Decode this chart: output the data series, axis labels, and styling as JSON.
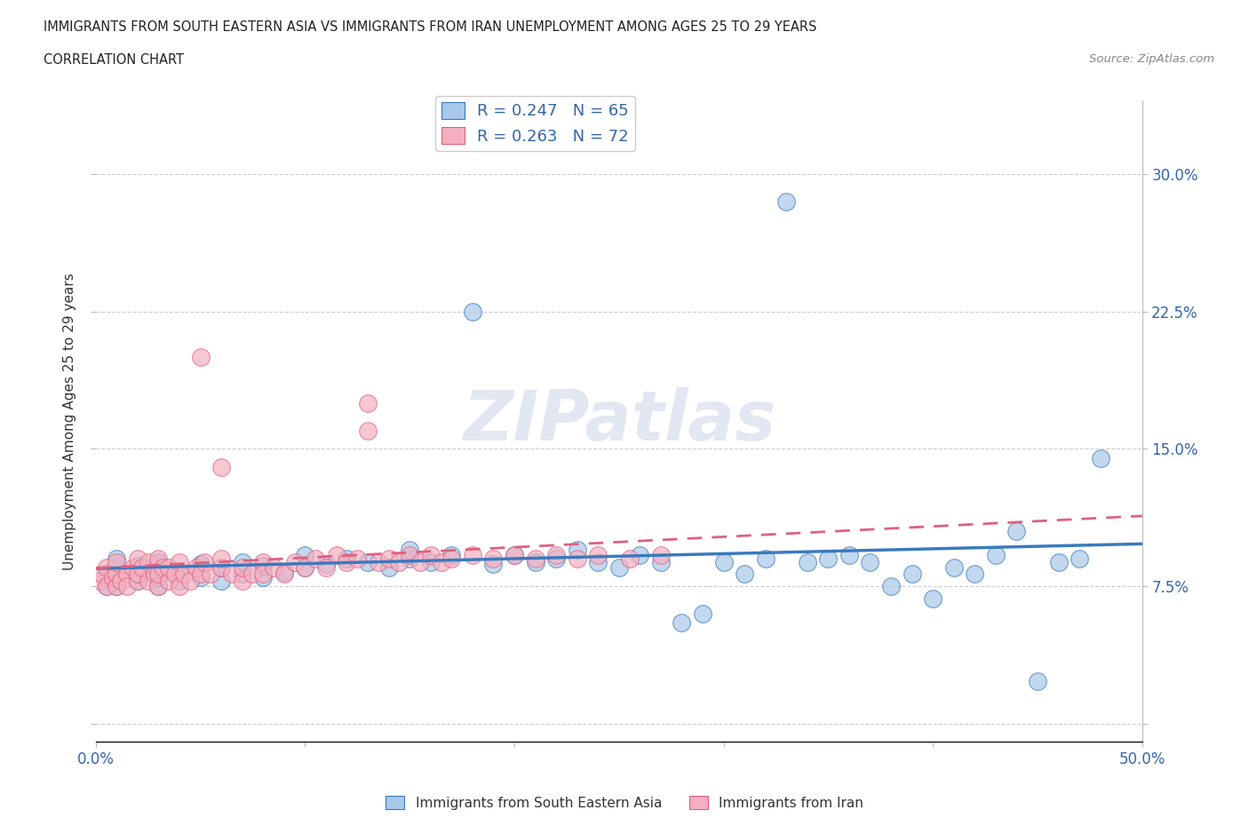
{
  "title_line1": "IMMIGRANTS FROM SOUTH EASTERN ASIA VS IMMIGRANTS FROM IRAN UNEMPLOYMENT AMONG AGES 25 TO 29 YEARS",
  "title_line2": "CORRELATION CHART",
  "source_text": "Source: ZipAtlas.com",
  "ylabel": "Unemployment Among Ages 25 to 29 years",
  "xlim": [
    0.0,
    0.5
  ],
  "ylim": [
    -0.01,
    0.34
  ],
  "color_blue": "#a8c8e8",
  "color_pink": "#f4b0c0",
  "line_blue": "#3a7abf",
  "line_pink": "#e06080",
  "R_blue": 0.247,
  "N_blue": 65,
  "R_pink": 0.263,
  "N_pink": 72,
  "legend_label_blue": "Immigrants from South Eastern Asia",
  "legend_label_pink": "Immigrants from Iran",
  "watermark": "ZIPatlas",
  "background_color": "#ffffff",
  "grid_color": "#cccccc",
  "blue_x": [
    0.005,
    0.005,
    0.008,
    0.01,
    0.01,
    0.01,
    0.01,
    0.02,
    0.02,
    0.02,
    0.03,
    0.03,
    0.03,
    0.04,
    0.04,
    0.05,
    0.05,
    0.06,
    0.06,
    0.07,
    0.07,
    0.08,
    0.08,
    0.09,
    0.1,
    0.1,
    0.11,
    0.12,
    0.13,
    0.14,
    0.15,
    0.15,
    0.16,
    0.17,
    0.18,
    0.19,
    0.2,
    0.21,
    0.22,
    0.23,
    0.24,
    0.25,
    0.26,
    0.27,
    0.28,
    0.29,
    0.3,
    0.31,
    0.32,
    0.33,
    0.34,
    0.35,
    0.36,
    0.37,
    0.38,
    0.39,
    0.4,
    0.41,
    0.42,
    0.43,
    0.44,
    0.45,
    0.46,
    0.47,
    0.48
  ],
  "blue_y": [
    0.075,
    0.082,
    0.078,
    0.075,
    0.08,
    0.085,
    0.09,
    0.078,
    0.082,
    0.086,
    0.075,
    0.08,
    0.088,
    0.078,
    0.083,
    0.08,
    0.087,
    0.078,
    0.085,
    0.082,
    0.088,
    0.08,
    0.086,
    0.083,
    0.085,
    0.092,
    0.087,
    0.09,
    0.088,
    0.085,
    0.09,
    0.095,
    0.088,
    0.092,
    0.225,
    0.087,
    0.092,
    0.088,
    0.09,
    0.095,
    0.088,
    0.085,
    0.092,
    0.088,
    0.055,
    0.06,
    0.088,
    0.082,
    0.09,
    0.285,
    0.088,
    0.09,
    0.092,
    0.088,
    0.075,
    0.082,
    0.068,
    0.085,
    0.082,
    0.092,
    0.105,
    0.023,
    0.088,
    0.09,
    0.145
  ],
  "pink_x": [
    0.002,
    0.003,
    0.005,
    0.005,
    0.008,
    0.01,
    0.01,
    0.01,
    0.012,
    0.015,
    0.015,
    0.018,
    0.02,
    0.02,
    0.02,
    0.022,
    0.025,
    0.025,
    0.028,
    0.03,
    0.03,
    0.03,
    0.032,
    0.035,
    0.035,
    0.038,
    0.04,
    0.04,
    0.042,
    0.045,
    0.048,
    0.05,
    0.05,
    0.052,
    0.055,
    0.06,
    0.06,
    0.065,
    0.07,
    0.07,
    0.075,
    0.08,
    0.08,
    0.085,
    0.09,
    0.095,
    0.1,
    0.105,
    0.11,
    0.115,
    0.12,
    0.125,
    0.13,
    0.135,
    0.14,
    0.145,
    0.15,
    0.155,
    0.16,
    0.165,
    0.17,
    0.18,
    0.19,
    0.2,
    0.21,
    0.22,
    0.23,
    0.24,
    0.255,
    0.27,
    0.06,
    0.13
  ],
  "pink_y": [
    0.078,
    0.082,
    0.075,
    0.085,
    0.08,
    0.075,
    0.082,
    0.088,
    0.078,
    0.082,
    0.075,
    0.085,
    0.078,
    0.082,
    0.09,
    0.085,
    0.078,
    0.088,
    0.082,
    0.075,
    0.082,
    0.09,
    0.085,
    0.078,
    0.085,
    0.082,
    0.075,
    0.088,
    0.082,
    0.078,
    0.085,
    0.2,
    0.082,
    0.088,
    0.082,
    0.085,
    0.09,
    0.082,
    0.078,
    0.085,
    0.082,
    0.088,
    0.082,
    0.085,
    0.082,
    0.088,
    0.085,
    0.09,
    0.085,
    0.092,
    0.088,
    0.09,
    0.175,
    0.088,
    0.09,
    0.088,
    0.092,
    0.088,
    0.092,
    0.088,
    0.09,
    0.092,
    0.09,
    0.092,
    0.09,
    0.092,
    0.09,
    0.092,
    0.09,
    0.092,
    0.14,
    0.16
  ]
}
